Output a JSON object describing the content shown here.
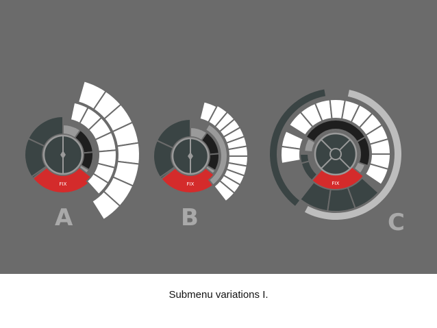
{
  "caption": "Submenu variations I.",
  "variants": [
    {
      "label": "A",
      "fix_label": "FIX"
    },
    {
      "label": "B",
      "fix_label": "FIX"
    },
    {
      "label": "C",
      "fix_label": "FIX"
    }
  ],
  "colors": {
    "background": "#6b6b6b",
    "dark_segment": "#3a4444",
    "ring_gray": "#9a9a9a",
    "black_segment": "#1e1e1e",
    "white_segment": "#ffffff",
    "fix_red": "#d42b2b",
    "label_gray": "#a9a9a9",
    "outer_ring_light": "#bdbdbd"
  }
}
